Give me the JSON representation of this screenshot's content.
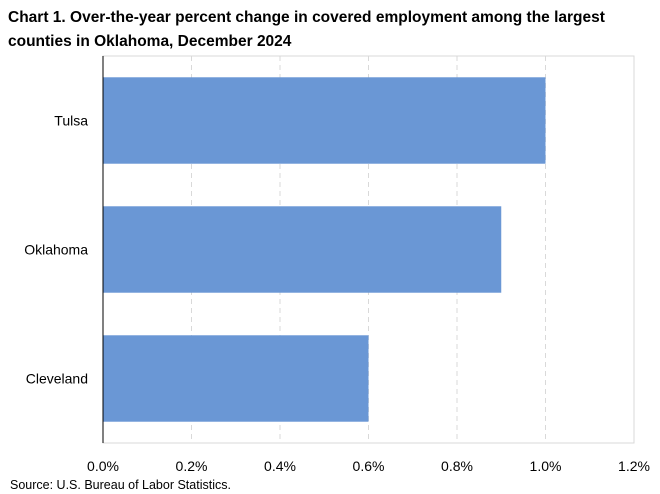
{
  "title": "Chart 1. Over-the-year percent change in covered employment among the largest counties in Oklahoma, December 2024",
  "source": "Source: U.S. Bureau of Labor Statistics.",
  "chart_data": {
    "type": "bar",
    "orientation": "horizontal",
    "categories": [
      "Tulsa",
      "Oklahoma",
      "Cleveland"
    ],
    "values": [
      1.0,
      0.9,
      0.6
    ],
    "xlim": [
      0,
      1.2
    ],
    "xticks": [
      0.0,
      0.2,
      0.4,
      0.6,
      0.8,
      1.0,
      1.2
    ],
    "xtick_labels": [
      "0.0%",
      "0.2%",
      "0.4%",
      "0.6%",
      "0.8%",
      "1.0%",
      "1.2%"
    ],
    "bar_color": "#6a97d5",
    "grid": "vertical dashed",
    "legend": "none"
  }
}
